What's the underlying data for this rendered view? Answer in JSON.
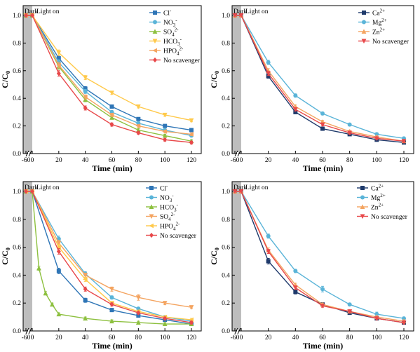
{
  "chart_data": [
    {
      "type": "line",
      "xlabel": "Time (min)",
      "ylabel": "C/C0",
      "x_ticks": [
        "-60",
        "0",
        "20",
        "40",
        "60",
        "80",
        "100",
        "120"
      ],
      "y_ticks": [
        "0.0",
        "0.2",
        "0.4",
        "0.6",
        "0.8",
        "1.0"
      ],
      "ylim": [
        0,
        1.05
      ],
      "dark_label": "Dark",
      "light_label": "Light on",
      "legend_position": "top-right",
      "x": [
        -60,
        0,
        20,
        40,
        60,
        80,
        100,
        120
      ],
      "series": [
        {
          "name": "Cl",
          "sup": "-",
          "sub": "",
          "color": "#2e75b6",
          "marker": "square",
          "values": [
            1.0,
            1.0,
            0.69,
            0.47,
            0.34,
            0.25,
            0.2,
            0.17
          ],
          "errors": [
            0,
            0,
            0.02,
            0.015,
            0.012,
            0.01,
            0.01,
            0.01
          ]
        },
        {
          "name": "NO",
          "sup": "-",
          "sub": "3",
          "color": "#5ab4d8",
          "marker": "circle",
          "values": [
            1.0,
            1.0,
            0.66,
            0.45,
            0.3,
            0.22,
            0.17,
            0.13
          ],
          "errors": [
            0,
            0,
            0.02,
            0.015,
            0.012,
            0.01,
            0.01,
            0.01
          ]
        },
        {
          "name": "SO",
          "sup": "2-",
          "sub": "4",
          "color": "#8dc03f",
          "marker": "triangle",
          "values": [
            1.0,
            1.0,
            0.63,
            0.39,
            0.26,
            0.17,
            0.13,
            0.09
          ],
          "errors": [
            0,
            0,
            0.02,
            0.015,
            0.012,
            0.01,
            0.01,
            0.01
          ]
        },
        {
          "name": "HCO",
          "sup": "-",
          "sub": "3",
          "color": "#ffc94a",
          "marker": "triangle-down",
          "values": [
            1.0,
            1.0,
            0.73,
            0.55,
            0.44,
            0.34,
            0.28,
            0.24
          ],
          "errors": [
            0,
            0,
            0.02,
            0.015,
            0.012,
            0.01,
            0.01,
            0.01
          ]
        },
        {
          "name": "HPO",
          "sup": "2-",
          "sub": "4",
          "color": "#f4a460",
          "marker": "triangle-left",
          "values": [
            1.0,
            1.0,
            0.64,
            0.41,
            0.28,
            0.2,
            0.16,
            0.14
          ],
          "errors": [
            0,
            0,
            0.02,
            0.015,
            0.012,
            0.01,
            0.01,
            0.01
          ]
        },
        {
          "name": "No scavenger",
          "sup": "",
          "sub": "",
          "color": "#e8484a",
          "marker": "diamond",
          "values": [
            1.0,
            1.0,
            0.58,
            0.33,
            0.21,
            0.15,
            0.1,
            0.08
          ],
          "errors": [
            0,
            0,
            0.02,
            0.015,
            0.012,
            0.01,
            0.01,
            0.01
          ]
        }
      ]
    },
    {
      "type": "line",
      "xlabel": "Time (min)",
      "ylabel": "C/C0",
      "x_ticks": [
        "-60",
        "0",
        "20",
        "40",
        "60",
        "80",
        "100",
        "120"
      ],
      "y_ticks": [
        "0.0",
        "0.2",
        "0.4",
        "0.6",
        "0.8",
        "1.0"
      ],
      "ylim": [
        0,
        1.05
      ],
      "dark_label": "Dark",
      "light_label": "Light on",
      "legend_position": "top-right",
      "x": [
        -60,
        0,
        20,
        40,
        60,
        80,
        100,
        120
      ],
      "series": [
        {
          "name": "Ca",
          "sup": "2+",
          "sub": "",
          "color": "#1f3a6b",
          "marker": "square",
          "values": [
            1.0,
            1.0,
            0.56,
            0.3,
            0.18,
            0.14,
            0.1,
            0.08
          ],
          "errors": [
            0,
            0,
            0.015,
            0.012,
            0.01,
            0.01,
            0.01,
            0.01
          ]
        },
        {
          "name": "Mg",
          "sup": "2+",
          "sub": "",
          "color": "#5ab4d8",
          "marker": "circle",
          "values": [
            1.0,
            1.0,
            0.66,
            0.42,
            0.29,
            0.21,
            0.14,
            0.11
          ],
          "errors": [
            0,
            0,
            0.015,
            0.012,
            0.01,
            0.01,
            0.01,
            0.01
          ]
        },
        {
          "name": "Zn",
          "sup": "2+",
          "sub": "",
          "color": "#f4a460",
          "marker": "triangle",
          "values": [
            1.0,
            1.0,
            0.6,
            0.34,
            0.23,
            0.16,
            0.12,
            0.09
          ],
          "errors": [
            0,
            0,
            0.015,
            0.012,
            0.01,
            0.01,
            0.01,
            0.01
          ]
        },
        {
          "name": "No scavenger",
          "sup": "",
          "sub": "",
          "color": "#e8484a",
          "marker": "triangle-down",
          "values": [
            1.0,
            1.0,
            0.58,
            0.32,
            0.21,
            0.15,
            0.11,
            0.09
          ],
          "errors": [
            0,
            0,
            0.015,
            0.012,
            0.01,
            0.01,
            0.01,
            0.01
          ]
        }
      ]
    },
    {
      "type": "line",
      "xlabel": "Time (min)",
      "ylabel": "C/C0",
      "x_ticks": [
        "-60",
        "0",
        "20",
        "40",
        "60",
        "80",
        "100",
        "120"
      ],
      "y_ticks": [
        "0.0",
        "0.2",
        "0.4",
        "0.6",
        "0.8",
        "1.0"
      ],
      "ylim": [
        0,
        1.05
      ],
      "dark_label": "Dark",
      "light_label": "Light on",
      "legend_position": "top-right",
      "series": [
        {
          "name": "Cl",
          "sup": "-",
          "sub": "",
          "color": "#2e75b6",
          "marker": "square",
          "x": [
            -60,
            0,
            20,
            40,
            60,
            80,
            100,
            120
          ],
          "values": [
            1.0,
            1.0,
            0.43,
            0.22,
            0.15,
            0.11,
            0.08,
            0.05
          ],
          "errors": [
            0,
            0,
            0.02,
            0.015,
            0.012,
            0.01,
            0.01,
            0.01
          ]
        },
        {
          "name": "NO",
          "sup": "-",
          "sub": "3",
          "color": "#5ab4d8",
          "marker": "circle",
          "x": [
            -60,
            0,
            20,
            40,
            60,
            80,
            100,
            120
          ],
          "values": [
            1.0,
            1.0,
            0.66,
            0.41,
            0.24,
            0.16,
            0.1,
            0.07
          ],
          "errors": [
            0,
            0,
            0.02,
            0.015,
            0.012,
            0.01,
            0.01,
            0.01
          ]
        },
        {
          "name": "HCO",
          "sup": "-",
          "sub": "3",
          "color": "#8dc03f",
          "marker": "triangle",
          "x": [
            -60,
            0,
            5,
            10,
            15,
            20,
            40,
            60,
            80,
            100,
            120
          ],
          "values": [
            1.0,
            1.0,
            0.45,
            0.27,
            0.19,
            0.12,
            0.09,
            0.07,
            0.06,
            0.05,
            0.05
          ],
          "errors": [
            0,
            0,
            0.015,
            0.012,
            0.01,
            0.01,
            0.01,
            0.01,
            0.01,
            0.01,
            0.01
          ]
        },
        {
          "name": "SO",
          "sup": "2-",
          "sub": "4",
          "color": "#f4a460",
          "marker": "triangle-down",
          "x": [
            -60,
            0,
            20,
            40,
            60,
            80,
            100,
            120
          ],
          "values": [
            1.0,
            1.0,
            0.63,
            0.4,
            0.3,
            0.24,
            0.2,
            0.17
          ],
          "errors": [
            0,
            0,
            0.02,
            0.015,
            0.015,
            0.02,
            0.012,
            0.01
          ]
        },
        {
          "name": "HPO",
          "sup": "2-",
          "sub": "4",
          "color": "#ffc94a",
          "marker": "triangle-left",
          "x": [
            -60,
            0,
            20,
            40,
            60,
            80,
            100,
            120
          ],
          "values": [
            1.0,
            1.0,
            0.6,
            0.37,
            0.2,
            0.14,
            0.1,
            0.08
          ],
          "errors": [
            0,
            0,
            0.02,
            0.015,
            0.012,
            0.01,
            0.01,
            0.01
          ]
        },
        {
          "name": "No scavenger",
          "sup": "",
          "sub": "",
          "color": "#e8484a",
          "marker": "diamond",
          "x": [
            -60,
            0,
            20,
            40,
            60,
            80,
            100,
            120
          ],
          "values": [
            1.0,
            1.0,
            0.57,
            0.3,
            0.19,
            0.13,
            0.09,
            0.06
          ],
          "errors": [
            0,
            0,
            0.02,
            0.015,
            0.012,
            0.01,
            0.01,
            0.01
          ]
        }
      ]
    },
    {
      "type": "line",
      "xlabel": "Time (min)",
      "ylabel": "C/C0",
      "x_ticks": [
        "-60",
        "0",
        "20",
        "40",
        "60",
        "80",
        "100",
        "120"
      ],
      "y_ticks": [
        "0.0",
        "0.2",
        "0.4",
        "0.6",
        "0.8",
        "1.0"
      ],
      "ylim": [
        0,
        1.05
      ],
      "dark_label": "Dark",
      "light_label": "Light on",
      "legend_position": "top-right",
      "x": [
        -60,
        0,
        20,
        40,
        60,
        80,
        100,
        120
      ],
      "series": [
        {
          "name": "Ca",
          "sup": "2+",
          "sub": "",
          "color": "#1f3a6b",
          "marker": "square",
          "values": [
            1.0,
            1.0,
            0.5,
            0.28,
            0.19,
            0.13,
            0.09,
            0.06
          ],
          "errors": [
            0,
            0,
            0.02,
            0.015,
            0.012,
            0.01,
            0.01,
            0.01
          ]
        },
        {
          "name": "Mg",
          "sup": "2+",
          "sub": "",
          "color": "#5ab4d8",
          "marker": "circle",
          "values": [
            1.0,
            1.0,
            0.68,
            0.43,
            0.3,
            0.19,
            0.12,
            0.09
          ],
          "errors": [
            0,
            0,
            0.015,
            0.012,
            0.02,
            0.01,
            0.015,
            0.01
          ]
        },
        {
          "name": "Zn",
          "sup": "2+",
          "sub": "",
          "color": "#f4a460",
          "marker": "triangle",
          "values": [
            1.0,
            1.0,
            0.58,
            0.33,
            0.19,
            0.14,
            0.1,
            0.07
          ],
          "errors": [
            0,
            0,
            0.015,
            0.012,
            0.01,
            0.01,
            0.01,
            0.01
          ]
        },
        {
          "name": "No scavenger",
          "sup": "",
          "sub": "",
          "color": "#e8484a",
          "marker": "triangle-down",
          "values": [
            1.0,
            1.0,
            0.57,
            0.31,
            0.18,
            0.14,
            0.09,
            0.06
          ],
          "errors": [
            0,
            0,
            0.015,
            0.012,
            0.01,
            0.01,
            0.01,
            0.01
          ]
        }
      ]
    }
  ]
}
